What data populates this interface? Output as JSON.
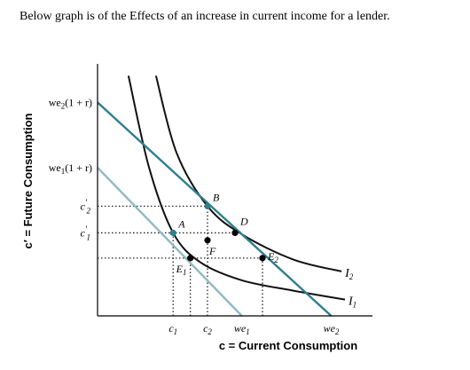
{
  "caption": "Below graph is of the Effects of an increase in current income for a lender.",
  "chart_data": {
    "type": "line",
    "title": "",
    "xlabel": "c = Current Consumption",
    "ylabel": "c′ = Future Consumption",
    "x_ticks": [
      {
        "label": "c",
        "sub": "1",
        "sup": "",
        "x": 2.2
      },
      {
        "label": "c",
        "sub": "2",
        "sup": "",
        "x": 3.2
      },
      {
        "label": "we",
        "sub": "1",
        "sup": "",
        "x": 4.2
      },
      {
        "label": "we",
        "sub": "2",
        "sup": "",
        "x": 6.8
      }
    ],
    "y_ticks": [
      {
        "label": "we",
        "sub": "2",
        "suffix": "(1 + r)",
        "sup": "",
        "y": 7.2
      },
      {
        "label": "we",
        "sub": "1",
        "suffix": "(1 + r)",
        "sup": "",
        "y": 5.0
      },
      {
        "label": "c",
        "sub": "2",
        "suffix": "",
        "sup": "′",
        "y": 3.7
      },
      {
        "label": "c",
        "sub": "1",
        "suffix": "",
        "sup": "′",
        "y": 2.8
      }
    ],
    "xlim": [
      0,
      8
    ],
    "ylim": [
      0,
      8.5
    ],
    "series": [
      {
        "label": "I",
        "label_sub": "1",
        "kind": "indifference",
        "color": "#111111",
        "points": [
          [
            0.9,
            8.1
          ],
          [
            1.5,
            5.0
          ],
          [
            2.2,
            2.8
          ],
          [
            3.0,
            1.8
          ],
          [
            4.2,
            1.2
          ],
          [
            5.7,
            0.85
          ],
          [
            7.2,
            0.55
          ]
        ]
      },
      {
        "label": "I",
        "label_sub": "2",
        "kind": "indifference",
        "color": "#111111",
        "points": [
          [
            1.7,
            8.1
          ],
          [
            2.3,
            5.5
          ],
          [
            3.2,
            3.7
          ],
          [
            4.2,
            2.75
          ],
          [
            5.7,
            1.9
          ],
          [
            7.1,
            1.5
          ]
        ]
      },
      {
        "label": "",
        "kind": "budget",
        "color": "#2e7e8e",
        "points": [
          [
            0,
            7.2
          ],
          [
            6.8,
            0
          ]
        ]
      },
      {
        "label": "",
        "kind": "budget",
        "color": "#8fb9c4",
        "points": [
          [
            0,
            5.0
          ],
          [
            4.2,
            0
          ]
        ]
      }
    ],
    "points": [
      {
        "label": "A",
        "sub": "",
        "x": 2.2,
        "y": 2.8,
        "color": "#2e7e8e"
      },
      {
        "label": "B",
        "sub": "",
        "x": 3.2,
        "y": 3.7,
        "color": "#2e7e8e"
      },
      {
        "label": "D",
        "sub": "",
        "x": 4.0,
        "y": 2.8,
        "color": "#000000"
      },
      {
        "label": "F",
        "sub": "",
        "x": 3.2,
        "y": 2.55,
        "color": "#000000"
      },
      {
        "label": "E",
        "sub": "1",
        "x": 2.7,
        "y": 1.95,
        "color": "#000000"
      },
      {
        "label": "E",
        "sub": "2",
        "x": 4.8,
        "y": 1.95,
        "color": "#000000"
      }
    ],
    "guides": [
      {
        "from": [
          0,
          3.7
        ],
        "to": [
          3.2,
          3.7
        ]
      },
      {
        "from": [
          0,
          2.8
        ],
        "to": [
          4.0,
          2.8
        ]
      },
      {
        "from": [
          0,
          1.95
        ],
        "to": [
          4.8,
          1.95
        ]
      },
      {
        "from": [
          2.2,
          0
        ],
        "to": [
          2.2,
          2.8
        ]
      },
      {
        "from": [
          2.7,
          0
        ],
        "to": [
          2.7,
          1.95
        ]
      },
      {
        "from": [
          3.2,
          0
        ],
        "to": [
          3.2,
          3.7
        ]
      },
      {
        "from": [
          4.8,
          0
        ],
        "to": [
          4.8,
          1.95
        ]
      }
    ]
  }
}
